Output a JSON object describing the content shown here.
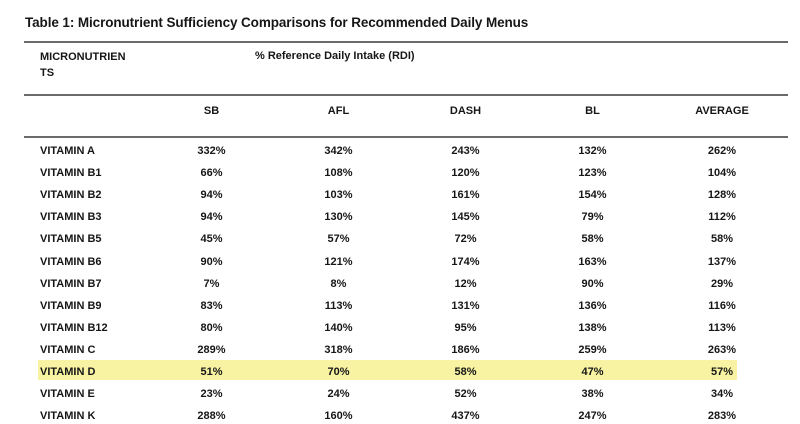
{
  "title": "Table 1: Micronutrient Sufficiency Comparisons for Recommended Daily Menus",
  "table": {
    "group_header": {
      "micronutrients_label": "MICRONUTRIEN\nTS",
      "rdi_label": "% Reference Daily Intake (RDI)"
    },
    "columns": [
      "SB",
      "AFL",
      "DASH",
      "BL",
      "AVERAGE"
    ],
    "rows": [
      {
        "label": "VITAMIN A",
        "values": [
          "332%",
          "342%",
          "243%",
          "132%",
          "262%"
        ],
        "highlighted": false
      },
      {
        "label": "VITAMIN B1",
        "values": [
          "66%",
          "108%",
          "120%",
          "123%",
          "104%"
        ],
        "highlighted": false
      },
      {
        "label": "VITAMIN B2",
        "values": [
          "94%",
          "103%",
          "161%",
          "154%",
          "128%"
        ],
        "highlighted": false
      },
      {
        "label": "VITAMIN B3",
        "values": [
          "94%",
          "130%",
          "145%",
          "79%",
          "112%"
        ],
        "highlighted": false
      },
      {
        "label": "VITAMIN B5",
        "values": [
          "45%",
          "57%",
          "72%",
          "58%",
          "58%"
        ],
        "highlighted": false
      },
      {
        "label": "VITAMIN B6",
        "values": [
          "90%",
          "121%",
          "174%",
          "163%",
          "137%"
        ],
        "highlighted": false
      },
      {
        "label": "VITAMIN B7",
        "values": [
          "7%",
          "8%",
          "12%",
          "90%",
          "29%"
        ],
        "highlighted": false
      },
      {
        "label": "VITAMIN B9",
        "values": [
          "83%",
          "113%",
          "131%",
          "136%",
          "116%"
        ],
        "highlighted": false
      },
      {
        "label": "VITAMIN B12",
        "values": [
          "80%",
          "140%",
          "95%",
          "138%",
          "113%"
        ],
        "highlighted": false
      },
      {
        "label": "VITAMIN C",
        "values": [
          "289%",
          "318%",
          "186%",
          "259%",
          "263%"
        ],
        "highlighted": false
      },
      {
        "label": "VITAMIN D",
        "values": [
          "51%",
          "70%",
          "58%",
          "47%",
          "57%"
        ],
        "highlighted": true
      },
      {
        "label": "VITAMIN E",
        "values": [
          "23%",
          "24%",
          "52%",
          "38%",
          "34%"
        ],
        "highlighted": false
      },
      {
        "label": "VITAMIN K",
        "values": [
          "288%",
          "160%",
          "437%",
          "247%",
          "283%"
        ],
        "highlighted": false
      }
    ],
    "highlight_color": "#f7f3a2",
    "rule_color": "#6a6a6a"
  }
}
